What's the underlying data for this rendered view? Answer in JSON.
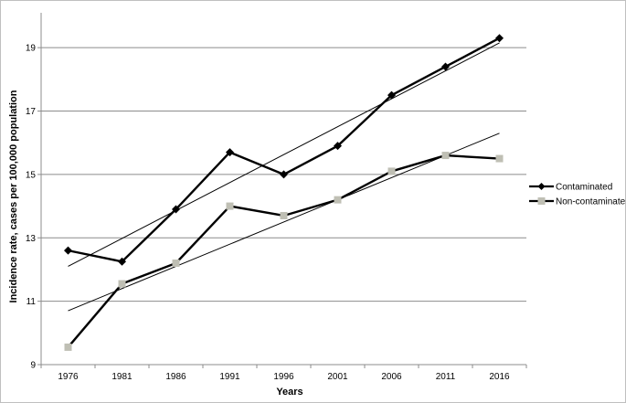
{
  "chart_data": {
    "type": "line",
    "title": "",
    "xlabel": "Years",
    "ylabel": "Incidence rate, cases per 100,000 population",
    "categories": [
      "1976",
      "1981",
      "1986",
      "1991",
      "1996",
      "2001",
      "2006",
      "2011",
      "2016"
    ],
    "yticks": [
      "9",
      "11",
      "13",
      "15",
      "17",
      "19"
    ],
    "ylim": [
      9,
      20.1
    ],
    "grid": "horizontal major gridlines",
    "legend_position": "right",
    "series": [
      {
        "name": "Contaminated",
        "values": [
          12.6,
          12.25,
          13.9,
          15.7,
          15.0,
          15.9,
          17.5,
          18.4,
          19.3
        ],
        "color": "#000000",
        "marker": "diamond",
        "trendline": {
          "start": 12.1,
          "end": 19.15,
          "type": "linear"
        }
      },
      {
        "name": "Non-contaminated",
        "values": [
          9.55,
          11.55,
          12.2,
          14.0,
          13.7,
          14.2,
          15.1,
          15.6,
          15.5
        ],
        "color": "#000000",
        "marker": "square",
        "marker_color": "#bfbfb4",
        "trendline": {
          "start": 10.7,
          "end": 16.3,
          "type": "linear"
        }
      }
    ]
  }
}
